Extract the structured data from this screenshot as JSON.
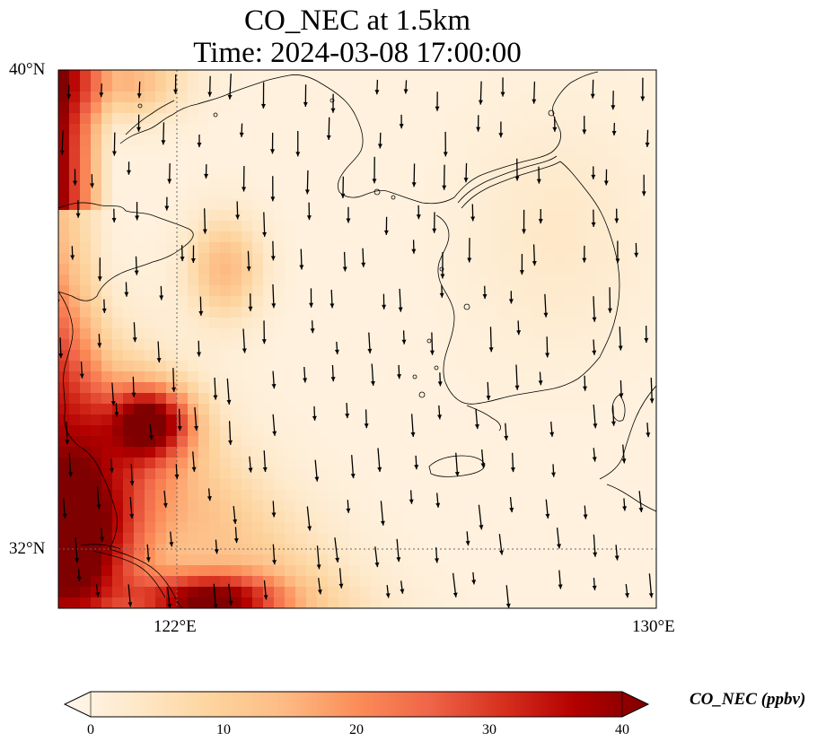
{
  "title_line1": "CO_NEC at 1.5km",
  "title_line2": "Time: 2024-03-08 17:00:00",
  "lat_ticks": [
    "40°N",
    "32°N"
  ],
  "lon_ticks": [
    "122°E",
    "130°E"
  ],
  "extent": {
    "lon_min": 120,
    "lon_max": 130,
    "lat_min": 31,
    "lat_max": 40
  },
  "colorbar": {
    "label": "CO_NEC (ppbv)",
    "ticks": [
      "0",
      "10",
      "20",
      "30",
      "40"
    ],
    "min": 0,
    "max": 40,
    "extend": "both",
    "colormap": "OrRd",
    "stops": [
      "#fff7ec",
      "#fee8c8",
      "#fdd49e",
      "#fdbb84",
      "#fc8d59",
      "#ef6548",
      "#d7301f",
      "#b30000",
      "#7f0000"
    ]
  },
  "gridlines": {
    "lons": [
      122
    ],
    "lats": [
      32
    ],
    "style": "dotted"
  },
  "wind_arrows": "south-southeast"
}
